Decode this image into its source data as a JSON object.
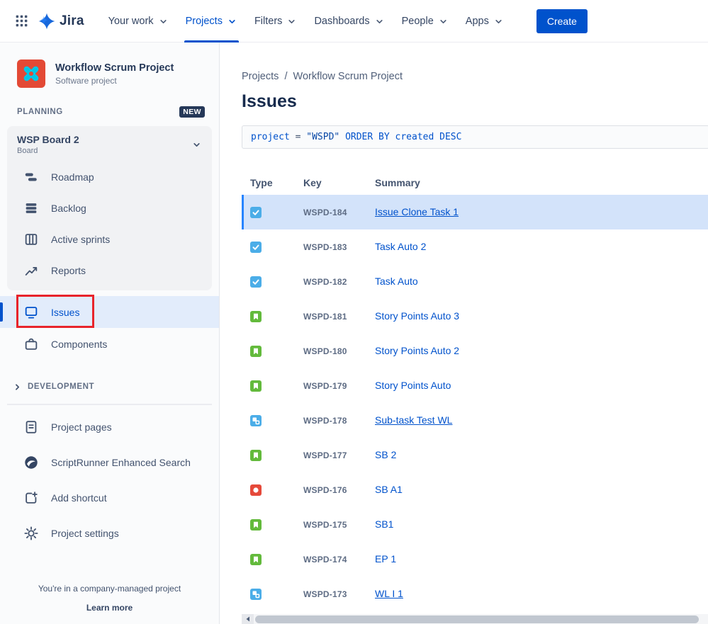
{
  "topnav": {
    "logo_text": "Jira",
    "items": [
      {
        "label": "Your work"
      },
      {
        "label": "Projects",
        "active": true
      },
      {
        "label": "Filters"
      },
      {
        "label": "Dashboards"
      },
      {
        "label": "People"
      },
      {
        "label": "Apps"
      }
    ],
    "create_label": "Create"
  },
  "sidebar": {
    "project": {
      "name": "Workflow Scrum Project",
      "type": "Software project"
    },
    "planning": {
      "label": "PLANNING",
      "badge": "NEW"
    },
    "board": {
      "name": "WSP Board 2",
      "type": "Board",
      "items": [
        {
          "label": "Roadmap",
          "icon": "roadmap-icon"
        },
        {
          "label": "Backlog",
          "icon": "backlog-icon"
        },
        {
          "label": "Active sprints",
          "icon": "board-columns-icon"
        },
        {
          "label": "Reports",
          "icon": "reports-icon"
        }
      ]
    },
    "items": [
      {
        "label": "Issues",
        "icon": "issues-icon",
        "selected": true,
        "annotated": true
      },
      {
        "label": "Components",
        "icon": "components-icon"
      }
    ],
    "development_label": "DEVELOPMENT",
    "tools": [
      {
        "label": "Project pages",
        "icon": "pages-icon"
      },
      {
        "label": "ScriptRunner Enhanced Search",
        "icon": "scriptrunner-icon"
      },
      {
        "label": "Add shortcut",
        "icon": "add-shortcut-icon"
      },
      {
        "label": "Project settings",
        "icon": "settings-gear-icon"
      }
    ],
    "footer": {
      "text": "You're in a company-managed project",
      "link": "Learn more"
    }
  },
  "main": {
    "breadcrumb": [
      "Projects",
      "Workflow Scrum Project"
    ],
    "title": "Issues",
    "jql_tokens": [
      {
        "text": "project",
        "color": "#0052CC"
      },
      {
        "text": " = ",
        "color": "#44546F"
      },
      {
        "text": "\"WSPD\"",
        "color": "#0747A6"
      },
      {
        "text": " ORDER BY ",
        "color": "#0052CC"
      },
      {
        "text": "created",
        "color": "#0052CC"
      },
      {
        "text": " DESC",
        "color": "#0052CC"
      }
    ],
    "table": {
      "columns": [
        "Type",
        "Key",
        "Summary"
      ],
      "rows": [
        {
          "type": "task",
          "key": "WSPD-184",
          "summary": "Issue Clone Task 1",
          "selected": true,
          "underline": true
        },
        {
          "type": "task",
          "key": "WSPD-183",
          "summary": "Task Auto 2"
        },
        {
          "type": "task",
          "key": "WSPD-182",
          "summary": "Task Auto"
        },
        {
          "type": "story",
          "key": "WSPD-181",
          "summary": "Story Points Auto 3"
        },
        {
          "type": "story",
          "key": "WSPD-180",
          "summary": "Story Points Auto 2"
        },
        {
          "type": "story",
          "key": "WSPD-179",
          "summary": "Story Points Auto"
        },
        {
          "type": "subtask",
          "key": "WSPD-178",
          "summary": "Sub-task Test WL",
          "underline": true
        },
        {
          "type": "story",
          "key": "WSPD-177",
          "summary": "SB 2"
        },
        {
          "type": "bug",
          "key": "WSPD-176",
          "summary": "SB A1"
        },
        {
          "type": "story",
          "key": "WSPD-175",
          "summary": "SB1"
        },
        {
          "type": "story",
          "key": "WSPD-174",
          "summary": "EP 1"
        },
        {
          "type": "subtask",
          "key": "WSPD-173",
          "summary": "WL I 1",
          "underline": true
        }
      ]
    }
  },
  "colors": {
    "accent": "#0052CC",
    "selected_row_bg": "#D3E3FA",
    "selected_item_bg": "#E2ECFB",
    "annotation": "#E8242B",
    "type_task": "#4BADE8",
    "type_story": "#63BA3C",
    "type_subtask": "#4BADE8",
    "type_bug": "#E5493A"
  }
}
